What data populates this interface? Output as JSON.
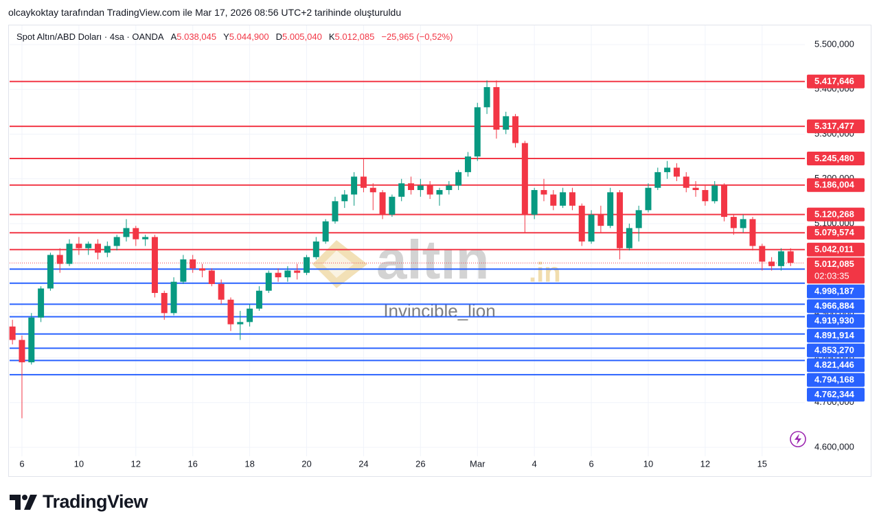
{
  "header": {
    "credit": "olcaykoktay tarafından TradingView.com ile Mar 17, 2026 08:56 UTC+2 tarihinde oluşturuldu",
    "symbol": "Spot Altın/ABD Doları · 4sa · OANDA",
    "ohlc": [
      {
        "key": "A",
        "value": "5.038,045"
      },
      {
        "key": "Y",
        "value": "5.044,900"
      },
      {
        "key": "D",
        "value": "5.005,040"
      },
      {
        "key": "K",
        "value": "5.012,085"
      }
    ],
    "change": "−25,965 (−0,52%)"
  },
  "chart_data": {
    "type": "candlestick",
    "up_color": "#089981",
    "down_color": "#f23645",
    "grid": true,
    "xlim": [
      -0.3,
      83.5
    ],
    "xticks": [
      {
        "value": 1,
        "label": "6"
      },
      {
        "value": 7,
        "label": "10"
      },
      {
        "value": 13,
        "label": "12"
      },
      {
        "value": 19,
        "label": "16"
      },
      {
        "value": 25,
        "label": "18"
      },
      {
        "value": 31,
        "label": "20"
      },
      {
        "value": 37,
        "label": "24"
      },
      {
        "value": 43,
        "label": "26"
      },
      {
        "value": 49,
        "label": "Mar"
      },
      {
        "value": 55,
        "label": "4"
      },
      {
        "value": 61,
        "label": "6"
      },
      {
        "value": 67,
        "label": "10"
      },
      {
        "value": 73,
        "label": "12"
      },
      {
        "value": 79,
        "label": "15"
      }
    ],
    "ylim": [
      4580,
      5543
    ],
    "yticks": [
      {
        "value": 4600,
        "label": "4.600,000"
      },
      {
        "value": 4700,
        "label": "4.700,000"
      },
      {
        "value": 4800,
        "label": "4.800,000"
      },
      {
        "value": 4900,
        "label": "4.900,000"
      },
      {
        "value": 5000,
        "label": "5.000,000"
      },
      {
        "value": 5100,
        "label": "5.100,000"
      },
      {
        "value": 5200,
        "label": "5.200,000"
      },
      {
        "value": 5300,
        "label": "5.300,000"
      },
      {
        "value": 5400,
        "label": "5.400,000"
      },
      {
        "value": 5500,
        "label": "5.500,000"
      }
    ],
    "open": [
      4870,
      4840,
      4790,
      4890,
      4955,
      5030,
      5010,
      5055,
      5045,
      5055,
      5035,
      5050,
      5070,
      5090,
      5065,
      5070,
      4945,
      4900,
      4970,
      5020,
      5000,
      4995,
      4965,
      4930,
      4875,
      4880,
      4910,
      4950,
      4990,
      4980,
      4995,
      4990,
      5025,
      5060,
      5105,
      5150,
      5165,
      5205,
      5180,
      5170,
      5120,
      5160,
      5190,
      5175,
      5185,
      5165,
      5175,
      5185,
      5215,
      5250,
      5360,
      5405,
      5310,
      5340,
      5280,
      5120,
      5175,
      5165,
      5140,
      5170,
      5140,
      5060,
      5120,
      5095,
      5170,
      5045,
      5090,
      5130,
      5180,
      5215,
      5225,
      5205,
      5180,
      5175,
      5150,
      5185,
      5115,
      5090,
      5110,
      5050,
      5015,
      5005,
      5038.045
    ],
    "high": [
      4885,
      4850,
      4900,
      4960,
      5035,
      5045,
      5065,
      5070,
      5060,
      5065,
      5060,
      5075,
      5110,
      5095,
      5075,
      5075,
      4950,
      4980,
      5030,
      5030,
      5010,
      5000,
      4975,
      4935,
      4905,
      4920,
      4960,
      4995,
      5000,
      5005,
      5010,
      5030,
      5070,
      5110,
      5160,
      5175,
      5215,
      5245,
      5190,
      5175,
      5165,
      5200,
      5205,
      5200,
      5195,
      5180,
      5195,
      5220,
      5260,
      5370,
      5420,
      5420,
      5350,
      5345,
      5285,
      5180,
      5200,
      5175,
      5180,
      5180,
      5145,
      5130,
      5140,
      5180,
      5175,
      5100,
      5140,
      5190,
      5225,
      5240,
      5235,
      5215,
      5195,
      5185,
      5195,
      5190,
      5120,
      5120,
      5115,
      5055,
      5025,
      5045,
      5044.9
    ],
    "low": [
      4830,
      4665,
      4785,
      4880,
      4950,
      4990,
      5005,
      5030,
      5030,
      5020,
      5025,
      5040,
      5060,
      5050,
      5050,
      4935,
      4885,
      4895,
      4965,
      4990,
      4980,
      4960,
      4920,
      4860,
      4840,
      4870,
      4905,
      4945,
      4970,
      4970,
      4975,
      4985,
      5020,
      5055,
      5100,
      5135,
      5140,
      5170,
      5130,
      5110,
      5115,
      5150,
      5165,
      5160,
      5155,
      5140,
      5165,
      5175,
      5205,
      5240,
      5345,
      5290,
      5300,
      5270,
      5080,
      5110,
      5150,
      5130,
      5135,
      5130,
      5050,
      5055,
      5080,
      5090,
      5020,
      5040,
      5060,
      5125,
      5175,
      5200,
      5195,
      5170,
      5160,
      5140,
      5145,
      5105,
      5075,
      5080,
      5040,
      4995,
      4995,
      4995,
      5005.04
    ],
    "close": [
      4840,
      4790,
      4890,
      4955,
      5030,
      5010,
      5055,
      5045,
      5055,
      5035,
      5050,
      5070,
      5090,
      5065,
      5070,
      4945,
      4900,
      4970,
      5020,
      5000,
      4995,
      4965,
      4930,
      4875,
      4880,
      4910,
      4950,
      4990,
      4980,
      4995,
      4990,
      5025,
      5060,
      5105,
      5150,
      5165,
      5205,
      5180,
      5170,
      5120,
      5160,
      5190,
      5175,
      5185,
      5165,
      5175,
      5185,
      5215,
      5250,
      5360,
      5405,
      5310,
      5340,
      5280,
      5120,
      5175,
      5165,
      5140,
      5170,
      5140,
      5060,
      5120,
      5095,
      5170,
      5045,
      5090,
      5130,
      5180,
      5215,
      5225,
      5205,
      5180,
      5175,
      5150,
      5185,
      5115,
      5090,
      5110,
      5050,
      5015,
      5005,
      5038.045,
      5012.085
    ],
    "levels": [
      {
        "value": 5417.646,
        "label": "5.417,646",
        "color": "#f23645"
      },
      {
        "value": 5317.477,
        "label": "5.317,477",
        "color": "#f23645"
      },
      {
        "value": 5245.48,
        "label": "5.245,480",
        "color": "#f23645"
      },
      {
        "value": 5186.004,
        "label": "5.186,004",
        "color": "#f23645"
      },
      {
        "value": 5120.268,
        "label": "5.120,268",
        "color": "#f23645"
      },
      {
        "value": 5079.574,
        "label": "5.079,574",
        "color": "#f23645"
      },
      {
        "value": 5042.011,
        "label": "5.042,011",
        "color": "#f23645"
      },
      {
        "value": 4998.187,
        "label": "4.998,187",
        "color": "#2962ff"
      },
      {
        "value": 4966.884,
        "label": "4.966,884",
        "color": "#2962ff"
      },
      {
        "value": 4919.93,
        "label": "4.919,930",
        "color": "#2962ff"
      },
      {
        "value": 4891.914,
        "label": "4.891,914",
        "color": "#2962ff"
      },
      {
        "value": 4853.27,
        "label": "4.853,270",
        "color": "#2962ff"
      },
      {
        "value": 4821.446,
        "label": "4.821,446",
        "color": "#2962ff"
      },
      {
        "value": 4794.168,
        "label": "4.794,168",
        "color": "#2962ff"
      },
      {
        "value": 4762.344,
        "label": "4.762,344",
        "color": "#2962ff"
      }
    ],
    "last_price": {
      "value": 5012.085,
      "label": "5.012,085",
      "countdown": "02:03:35",
      "color": "#f23645"
    },
    "watermark": {
      "brand": "altın",
      "suffix": ".in",
      "author": "Invincible_lion"
    }
  },
  "footer": {
    "logo": "TradingView"
  }
}
